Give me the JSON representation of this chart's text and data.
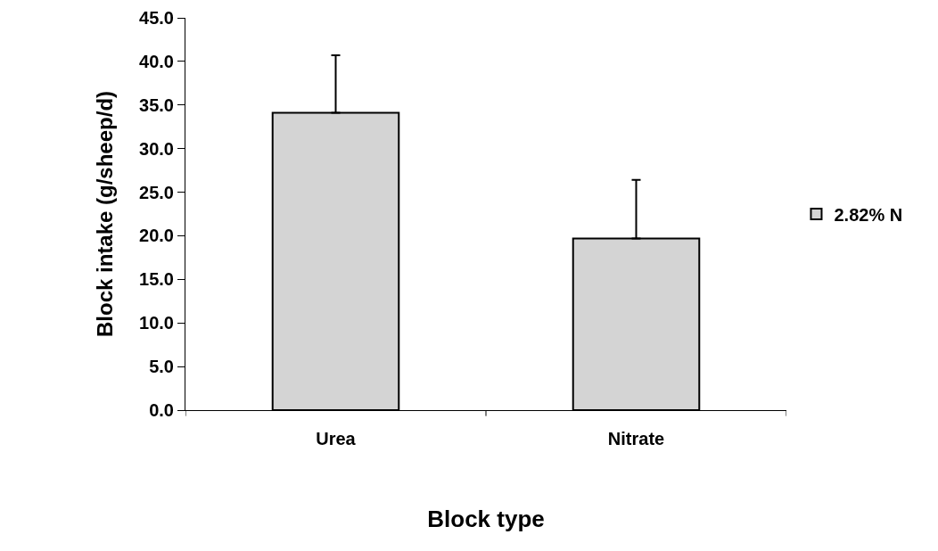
{
  "chart_data": {
    "type": "bar",
    "xlabel": "Block type",
    "ylabel": "Block intake (g/sheep/d)",
    "categories": [
      "Urea",
      "Nitrate"
    ],
    "series": [
      {
        "name": "2.82% N",
        "color": "#d4d4d4",
        "values": [
          34.1,
          19.7
        ],
        "errors": [
          [
            34.1,
            40.7
          ],
          [
            19.7,
            26.4
          ]
        ]
      }
    ],
    "ylim": [
      0,
      45
    ],
    "yticks": [
      {
        "value": 0,
        "label": "0.0"
      },
      {
        "value": 5,
        "label": "5.0"
      },
      {
        "value": 10,
        "label": "10.0"
      },
      {
        "value": 15,
        "label": "15.0"
      },
      {
        "value": 20,
        "label": "20.0"
      },
      {
        "value": 25,
        "label": "25.0"
      },
      {
        "value": 30,
        "label": "30.0"
      },
      {
        "value": 35,
        "label": "35.0"
      },
      {
        "value": 40,
        "label": "40.0"
      },
      {
        "value": 45,
        "label": "45.0"
      }
    ],
    "grid": false,
    "legend": "right"
  }
}
